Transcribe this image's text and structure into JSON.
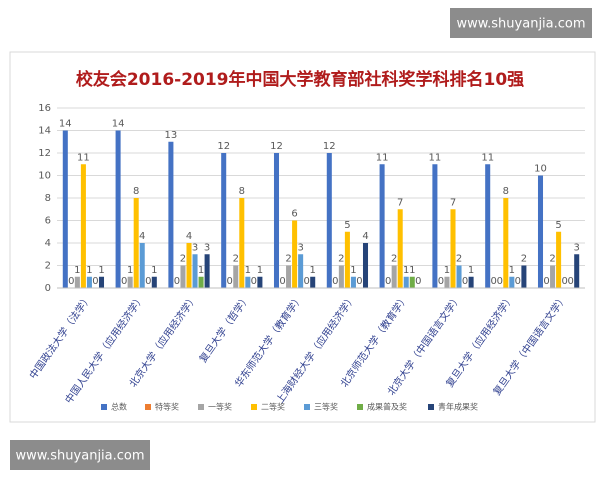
{
  "chart_data": {
    "type": "bar",
    "title": "校友会2016-2019年中国大学教育部社科奖学科排名10强",
    "categories": [
      "中国政法大学（法学）",
      "中国人民大学（应用经济学）",
      "北京大学（应用经济学）",
      "复旦大学（哲学）",
      "华东师范大学（教育学）",
      "上海财经大学（应用经济学）",
      "北京师范大学（教育学）",
      "北京大学（中国语言文学）",
      "复旦大学（应用经济学）",
      "复旦大学（中国语言文学）"
    ],
    "series": [
      {
        "name": "总数",
        "color": "#4472c4",
        "values": [
          14,
          14,
          13,
          12,
          12,
          12,
          11,
          11,
          11,
          10
        ]
      },
      {
        "name": "特等奖",
        "color": "#ed7d31",
        "values": [
          0,
          0,
          0,
          0,
          0,
          0,
          0,
          0,
          0,
          0
        ]
      },
      {
        "name": "一等奖",
        "color": "#a5a5a5",
        "values": [
          1,
          1,
          2,
          2,
          2,
          2,
          2,
          1,
          0,
          2
        ]
      },
      {
        "name": "二等奖",
        "color": "#ffc000",
        "values": [
          11,
          8,
          4,
          8,
          6,
          5,
          7,
          7,
          8,
          5
        ]
      },
      {
        "name": "三等奖",
        "color": "#5b9bd5",
        "values": [
          1,
          4,
          3,
          1,
          3,
          1,
          1,
          2,
          1,
          0
        ]
      },
      {
        "name": "成果普及奖",
        "color": "#70ad47",
        "values": [
          0,
          0,
          1,
          0,
          0,
          0,
          1,
          0,
          0,
          0
        ]
      },
      {
        "name": "青年成果奖",
        "color": "#264478",
        "values": [
          1,
          1,
          3,
          1,
          1,
          4,
          0,
          1,
          2,
          3
        ]
      }
    ],
    "ylim": [
      0,
      16
    ],
    "yticks": [
      0,
      2,
      4,
      6,
      8,
      10,
      12,
      14,
      16
    ],
    "grid": true,
    "legend": "bottom"
  },
  "watermarks": [
    "www.shuyanjia.com",
    "www.shuyanjia.com"
  ]
}
